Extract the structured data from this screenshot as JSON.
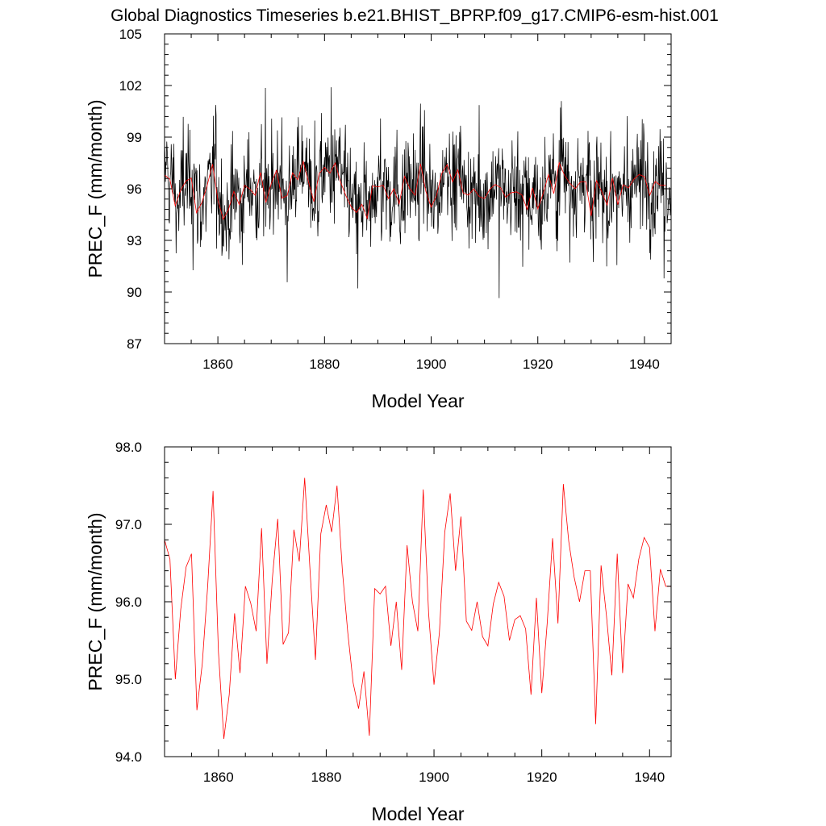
{
  "figure": {
    "title": "Global Diagnostics Timeseries b.e21.BHIST_BPRP.f09_g17.CMIP6-esm-hist.001"
  },
  "colors": {
    "monthly": "#000000",
    "annual": "#ff0000",
    "axis": "#000000"
  },
  "chart_data": [
    {
      "type": "line",
      "title": "",
      "xlabel": "Model Year",
      "ylabel": "PREC_F (mm/month)",
      "xlim": [
        1850,
        1945
      ],
      "ylim": [
        87,
        105
      ],
      "xticks": [
        1860,
        1880,
        1900,
        1920,
        1940
      ],
      "yticks": [
        87,
        90,
        93,
        96,
        99,
        102,
        105
      ],
      "ytick_labels": [
        "87",
        "90",
        "93",
        "96",
        "99",
        "102",
        "105"
      ],
      "series": [
        {
          "name": "monthly",
          "color": "#000000",
          "note": "monthly values ~1850-1945, approx. range 88.8-102.9, mean ~96",
          "value_range": [
            88.8,
            102.9
          ],
          "mean": 96.0
        },
        {
          "name": "annual",
          "color": "#ff0000",
          "x": [
            1850,
            1851,
            1852,
            1853,
            1854,
            1855,
            1856,
            1857,
            1858,
            1859,
            1860,
            1861,
            1862,
            1863,
            1864,
            1865,
            1866,
            1867,
            1868,
            1869,
            1870,
            1871,
            1872,
            1873,
            1874,
            1875,
            1876,
            1877,
            1878,
            1879,
            1880,
            1881,
            1882,
            1883,
            1884,
            1885,
            1886,
            1887,
            1888,
            1889,
            1890,
            1891,
            1892,
            1893,
            1894,
            1895,
            1896,
            1897,
            1898,
            1899,
            1900,
            1901,
            1902,
            1903,
            1904,
            1905,
            1906,
            1907,
            1908,
            1909,
            1910,
            1911,
            1912,
            1913,
            1914,
            1915,
            1916,
            1917,
            1918,
            1919,
            1920,
            1921,
            1922,
            1923,
            1924,
            1925,
            1926,
            1927,
            1928,
            1929,
            1930,
            1931,
            1932,
            1933,
            1934,
            1935,
            1936,
            1937,
            1938,
            1939,
            1940,
            1941,
            1942,
            1943,
            1944
          ],
          "values": [
            96.8,
            96.55,
            95.0,
            95.9,
            96.45,
            96.62,
            94.6,
            95.2,
            96.2,
            97.43,
            95.35,
            94.23,
            94.8,
            95.85,
            95.08,
            96.2,
            95.98,
            95.62,
            96.95,
            95.2,
            96.3,
            97.07,
            95.45,
            95.6,
            96.93,
            96.52,
            97.6,
            96.4,
            95.25,
            96.88,
            97.25,
            96.9,
            97.5,
            96.4,
            95.6,
            94.95,
            94.62,
            95.1,
            94.27,
            96.17,
            96.1,
            96.2,
            95.43,
            96.0,
            95.12,
            96.73,
            96.0,
            95.62,
            97.45,
            95.85,
            94.93,
            95.6,
            96.9,
            97.4,
            96.4,
            97.1,
            95.75,
            95.63,
            96.0,
            95.55,
            95.43,
            95.97,
            96.25,
            96.07,
            95.5,
            95.77,
            95.82,
            95.65,
            94.8,
            96.05,
            94.82,
            95.72,
            96.82,
            95.72,
            97.52,
            96.78,
            96.32,
            96.0,
            96.4,
            96.4,
            94.42,
            96.47,
            95.82,
            95.05,
            96.62,
            95.08,
            96.23,
            96.05,
            96.55,
            96.83,
            96.7,
            95.62,
            96.42,
            96.2,
            96.2
          ]
        }
      ]
    },
    {
      "type": "line",
      "title": "",
      "xlabel": "Model Year",
      "ylabel": "PREC_F (mm/month)",
      "xlim": [
        1850,
        1944
      ],
      "ylim": [
        94.0,
        98.0
      ],
      "xticks": [
        1860,
        1880,
        1900,
        1920,
        1940
      ],
      "yticks": [
        94,
        95,
        96,
        97,
        98
      ],
      "ytick_labels": [
        "94.0",
        "95.0",
        "96.0",
        "97.0",
        "98.0"
      ],
      "series": [
        {
          "name": "annual",
          "color": "#ff0000",
          "ref": "same annual series as panel 1"
        }
      ]
    }
  ]
}
